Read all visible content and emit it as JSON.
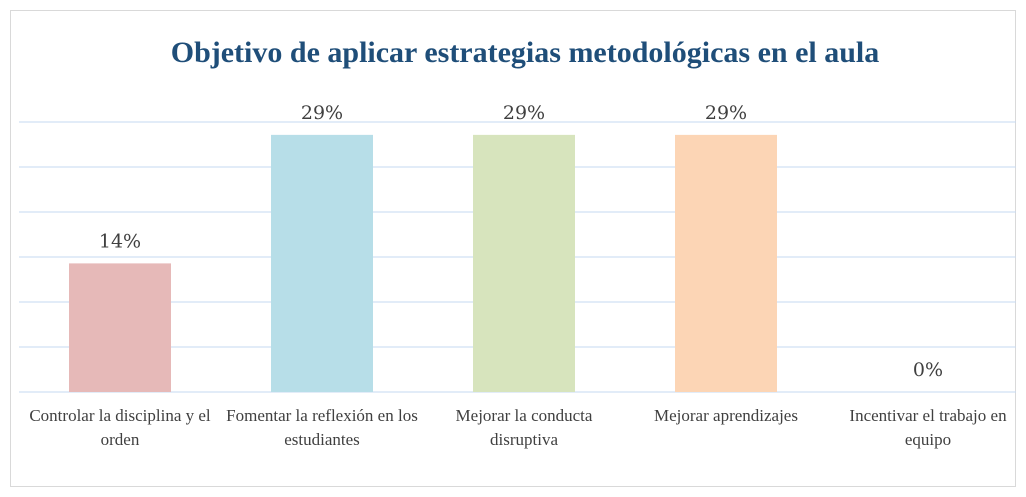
{
  "chart_data": {
    "type": "bar",
    "title": "Objetivo de aplicar estrategias metodológicas en el aula",
    "categories": [
      "Controlar la disciplina y el orden",
      "Fomentar la reflexión en los estudiantes",
      "Mejorar la conducta disruptiva",
      "Mejorar aprendizajes",
      "Incentivar el trabajo en equipo"
    ],
    "values": [
      14.29,
      28.57,
      28.57,
      28.57,
      0
    ],
    "value_labels": [
      "14%",
      "29%",
      "29%",
      "29%",
      "0%"
    ],
    "colors": [
      "#e6b9b8",
      "#b7dee8",
      "#d7e4bd",
      "#fcd5b5",
      "#c6d9f1"
    ],
    "ylim": [
      0,
      30
    ],
    "yticks": [
      0,
      5,
      10,
      15,
      20,
      25,
      30
    ],
    "grid": true
  }
}
